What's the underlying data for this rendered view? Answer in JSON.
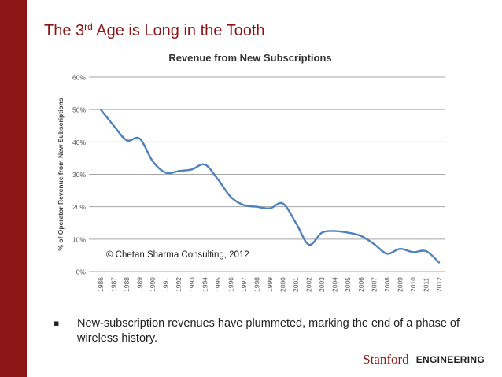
{
  "slide": {
    "title_pre": "The 3",
    "title_sup": "rd",
    "title_post": " Age is Long in the Tooth",
    "bullet": "▪",
    "caption": "New-subscription revenues have plummeted, marking the end of a phase of wireless history.",
    "logo_text": "Stanford",
    "logo_engineering": "ENGINEERING"
  },
  "colors": {
    "brand": "#8c1515",
    "title": "#8c1515",
    "line": "#4f81bd",
    "grid": "#a6a6a6"
  },
  "chart_data": {
    "type": "line",
    "title": "Revenue from New Subscriptions",
    "xlabel": "",
    "ylabel": "% of Operator Revenue from New Subscriptions",
    "annotation": "© Chetan Sharma Consulting, 2012",
    "ylim": [
      0,
      60
    ],
    "yticks": [
      "0%",
      "10%",
      "20%",
      "30%",
      "40%",
      "50%",
      "60%"
    ],
    "grid": true,
    "legend": "none",
    "categories": [
      "1986",
      "1987",
      "1988",
      "1989",
      "1990",
      "1991",
      "1992",
      "1993",
      "1994",
      "1995",
      "1996",
      "1997",
      "1998",
      "1999",
      "2000",
      "2001",
      "2002",
      "2003",
      "2004",
      "2005",
      "2006",
      "2007",
      "2008",
      "2009",
      "2010",
      "2011",
      "2012"
    ],
    "values": [
      50,
      45,
      40.5,
      41,
      34,
      30.5,
      31,
      31.5,
      33,
      28.5,
      23,
      20.5,
      20,
      19.5,
      21,
      15,
      8.3,
      12,
      12.5,
      12,
      11,
      8.5,
      5.5,
      7,
      6,
      6.3,
      2.8
    ]
  }
}
